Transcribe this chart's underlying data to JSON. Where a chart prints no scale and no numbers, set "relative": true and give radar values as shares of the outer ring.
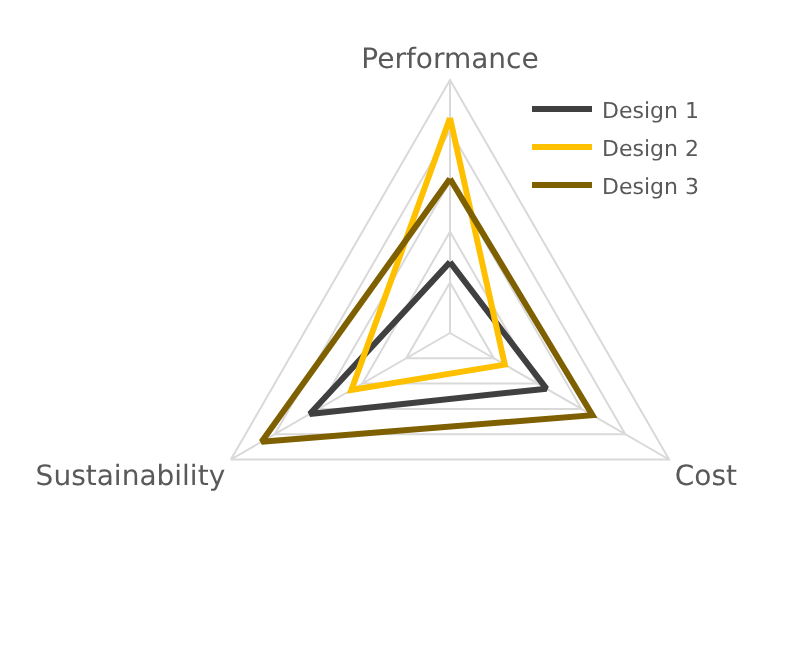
{
  "chart_data": {
    "type": "radar",
    "relative": true,
    "categories": [
      "Performance",
      "Cost",
      "Sustainability"
    ],
    "legend": "top right",
    "grid": true,
    "series": [
      {
        "name": "Design 1",
        "color": "#404040",
        "values": [
          0.28,
          0.44,
          0.64
        ]
      },
      {
        "name": "Design 2",
        "color": "#ffc000",
        "values": [
          0.85,
          0.25,
          0.45
        ]
      },
      {
        "name": "Design 3",
        "color": "#7f6000",
        "values": [
          0.61,
          0.65,
          0.86
        ]
      }
    ]
  }
}
